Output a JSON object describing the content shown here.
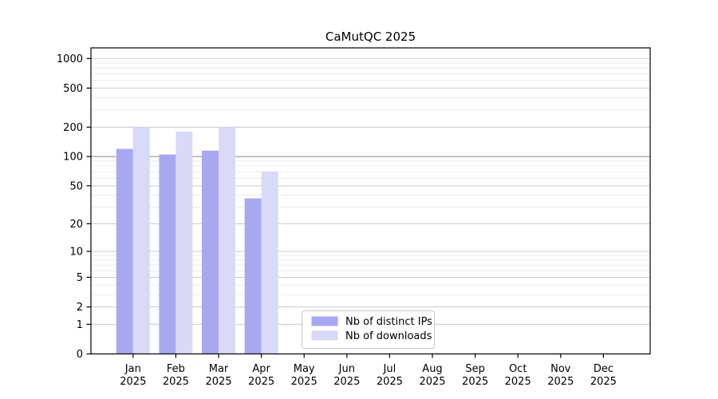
{
  "chart_data": {
    "type": "bar",
    "title": "CaMutQC 2025",
    "categories": [
      "Jan",
      "Feb",
      "Mar",
      "Apr",
      "May",
      "Jun",
      "Jul",
      "Aug",
      "Sep",
      "Oct",
      "Nov",
      "Dec"
    ],
    "category_year": "2025",
    "series": [
      {
        "name": "Nb of distinct IPs",
        "color": "#a8a8f0",
        "values": [
          120,
          105,
          115,
          37,
          null,
          null,
          null,
          null,
          null,
          null,
          null,
          null
        ]
      },
      {
        "name": "Nb of downloads",
        "color": "#d9d9f8",
        "values": [
          200,
          180,
          200,
          70,
          null,
          null,
          null,
          null,
          null,
          null,
          null,
          null
        ]
      }
    ],
    "xlabel": "",
    "ylabel": "",
    "y_axis": {
      "scale": "log1p",
      "ticks": [
        0,
        1,
        2,
        5,
        10,
        20,
        50,
        100,
        200,
        500,
        1000
      ],
      "minor_gridlines": [
        3,
        4,
        6,
        7,
        8,
        9,
        30,
        40,
        60,
        70,
        80,
        90,
        300,
        400,
        600,
        700,
        800,
        900
      ],
      "emphasized_gridline": 100,
      "max": 1281
    },
    "ylim": [
      0,
      1281
    ],
    "grid": true,
    "legend_position": "bottom-center",
    "style": {
      "grid_major_color": "#c9c9c9",
      "grid_minor_color": "#ececec",
      "grid_emphasis_color": "#a8a8a8",
      "axis_color": "#000000",
      "background_color": "#ffffff"
    }
  }
}
